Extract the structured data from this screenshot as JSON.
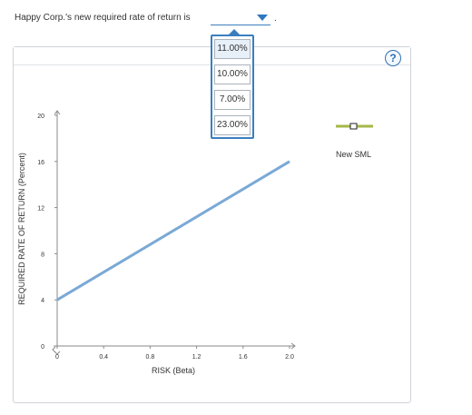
{
  "question": {
    "prefix": "Happy Corp.'s new required rate of return is",
    "suffix": ".",
    "selected": ""
  },
  "menu": {
    "options": [
      "11.00%",
      "10.00%",
      "7.00%",
      "23.00%"
    ],
    "highlighted_index": 0
  },
  "help": {
    "label": "?"
  },
  "legend": {
    "label": "New SML",
    "icon": "line-with-square-marker-icon",
    "color": "#a6b74a"
  },
  "chart_data": {
    "type": "line",
    "xlabel": "RISK (Beta)",
    "ylabel": "REQUIRED RATE OF RETURN (Percent)",
    "xlim": [
      0,
      2.0
    ],
    "ylim": [
      0,
      20
    ],
    "x_ticks": [
      "0",
      "0.4",
      "0.8",
      "1.2",
      "1.6",
      "2.0"
    ],
    "y_ticks": [
      "0",
      "4",
      "8",
      "12",
      "16",
      "20"
    ],
    "grid": false,
    "series": [
      {
        "x": [
          0,
          2.0
        ],
        "y": [
          4,
          16
        ],
        "color": "#7aa9d6"
      }
    ]
  }
}
